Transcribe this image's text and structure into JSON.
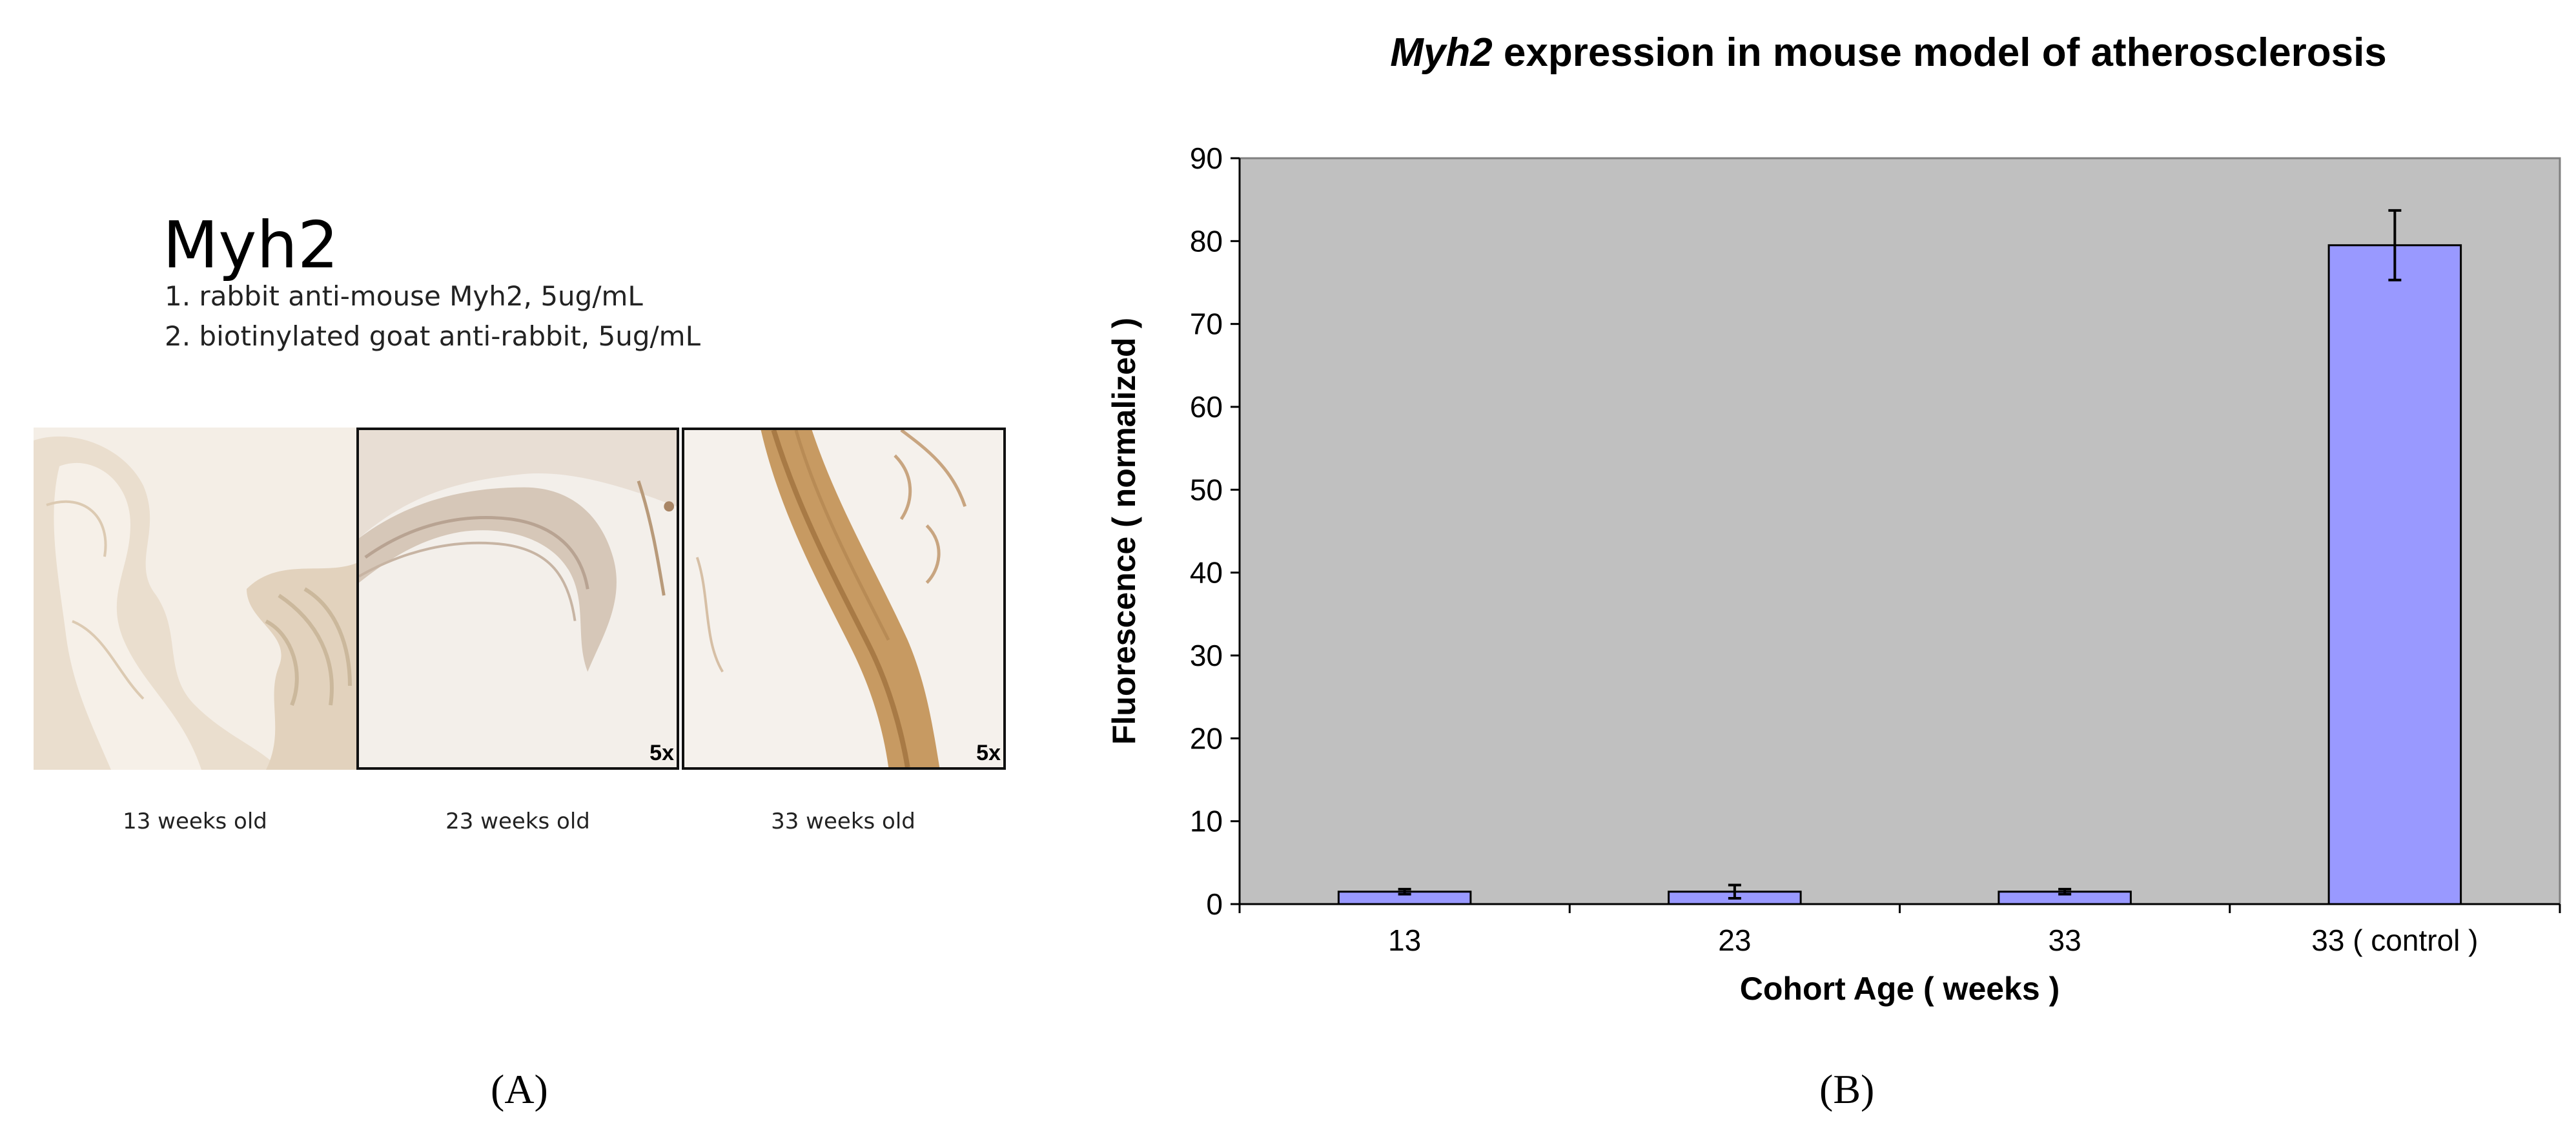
{
  "panel_a": {
    "title": "Myh2",
    "protocol": [
      "1. rabbit anti-mouse Myh2, 5ug/mL",
      "2. biotinylated goat anti-rabbit, 5ug/mL"
    ],
    "images": [
      {
        "caption": "13 weeks old",
        "magnification": ""
      },
      {
        "caption": "23 weeks old",
        "magnification": "5x"
      },
      {
        "caption": "33 weeks old",
        "magnification": "5x"
      }
    ],
    "label": "(A)"
  },
  "panel_b": {
    "label": "(B)"
  },
  "chart_data": {
    "type": "bar",
    "title_italic": "Myh2",
    "title_rest": " expression in mouse model of atherosclerosis",
    "categories": [
      "13",
      "23",
      "33",
      "33 ( control )"
    ],
    "values": [
      1.5,
      1.5,
      1.5,
      79.5
    ],
    "errors": [
      0.3,
      0.8,
      0.3,
      4.2
    ],
    "xlabel": "Cohort Age ( weeks )",
    "ylabel": "Fluorescence ( normalized )",
    "ylim": [
      0,
      90
    ],
    "yticks": [
      0,
      10,
      20,
      30,
      40,
      50,
      60,
      70,
      80,
      90
    ],
    "grid": false,
    "legend": "none",
    "colors": {
      "bar": "#9999ff",
      "plot_bg": "#c0c0c0",
      "edge": "#000000"
    }
  }
}
